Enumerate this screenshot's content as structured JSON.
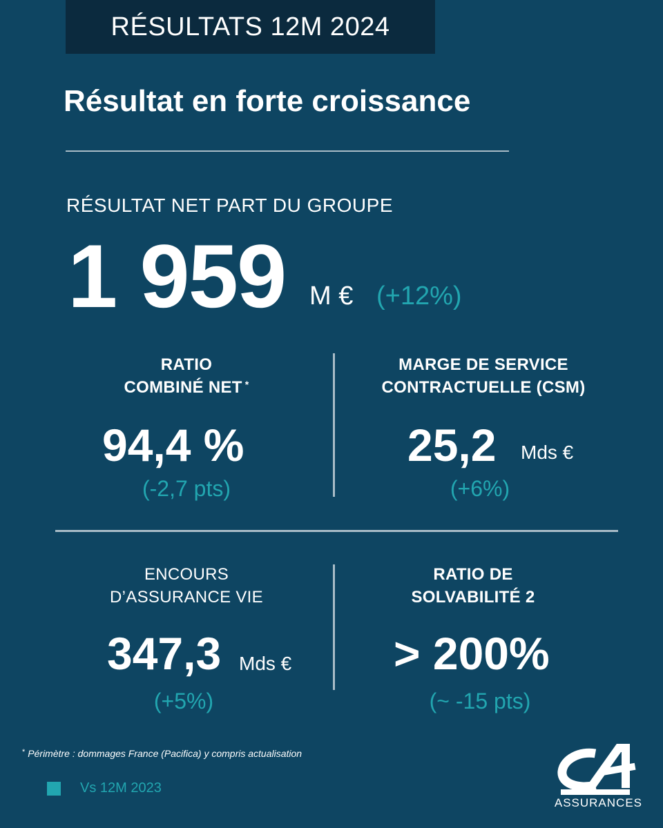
{
  "header": {
    "tag": "RÉSULTATS 12M 2024"
  },
  "headline": "Résultat en forte croissance",
  "main_kpi": {
    "label": "RÉSULTAT NET PART DU GROUPE",
    "value": "1 959",
    "unit": "M €",
    "variation": "(+12%)"
  },
  "kpis": [
    {
      "title_lines": [
        "RATIO",
        "COMBINÉ NET"
      ],
      "title_mark": "*",
      "value": "94,4 %",
      "unit": "",
      "variation": "(-2,7 pts)"
    },
    {
      "title_lines": [
        "MARGE DE SERVICE",
        "CONTRACTUELLE (CSM)"
      ],
      "value": "25,2",
      "unit": "Mds €",
      "variation": "(+6%)"
    },
    {
      "title_lines": [
        "ENCOURS",
        "D’ASSURANCE VIE"
      ],
      "value": "347,3",
      "unit": "Mds €",
      "variation": "(+5%)"
    },
    {
      "title_lines": [
        "RATIO DE",
        "SOLVABILITÉ 2"
      ],
      "value": "> 200%",
      "unit": "",
      "variation": "(~ -15 pts)"
    }
  ],
  "footnote": {
    "mark": "*",
    "text": "Périmètre : dommages France (Pacifica) y compris actualisation"
  },
  "legend": {
    "label": "Vs 12M 2023",
    "color": "#22a6b0"
  },
  "brand": {
    "logo": "ca-logo",
    "wordmark": "ASSURANCES"
  },
  "colors": {
    "background": "#0e4562",
    "tag_background": "#0b2a3e",
    "accent": "#22a6b0",
    "divider": "#a9bcc7"
  }
}
